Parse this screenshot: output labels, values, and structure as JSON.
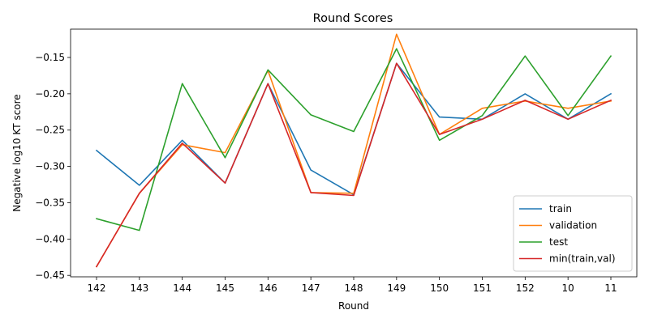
{
  "chart_data": {
    "type": "line",
    "title": "Round Scores",
    "xlabel": "Round",
    "ylabel": "Negative log10 KT score",
    "categories": [
      "142",
      "143",
      "144",
      "145",
      "146",
      "147",
      "148",
      "149",
      "150",
      "151",
      "152",
      "10",
      "11"
    ],
    "ylim": [
      -0.452,
      -0.111
    ],
    "yticks": [
      -0.45,
      -0.4,
      -0.35,
      -0.3,
      -0.25,
      -0.2,
      -0.15
    ],
    "ytick_labels": [
      "−0.45",
      "−0.40",
      "−0.35",
      "−0.30",
      "−0.25",
      "−0.20",
      "−0.15"
    ],
    "grid": false,
    "legend_position": "lower right",
    "series": [
      {
        "name": "train",
        "color": "#1f77b4",
        "values": [
          -0.278,
          -0.326,
          -0.264,
          -0.323,
          -0.186,
          -0.305,
          -0.339,
          -0.158,
          -0.232,
          -0.235,
          -0.2,
          -0.235,
          -0.2
        ]
      },
      {
        "name": "validation",
        "color": "#ff7f0e",
        "values": [
          -0.438,
          -0.337,
          -0.27,
          -0.281,
          -0.168,
          -0.336,
          -0.337,
          -0.118,
          -0.256,
          -0.22,
          -0.21,
          -0.22,
          -0.21
        ]
      },
      {
        "name": "test",
        "color": "#2ca02c",
        "values": [
          -0.372,
          -0.388,
          -0.186,
          -0.288,
          -0.167,
          -0.229,
          -0.252,
          -0.138,
          -0.264,
          -0.23,
          -0.148,
          -0.23,
          -0.148
        ]
      },
      {
        "name": "min(train,val)",
        "color": "#d62728",
        "values": [
          -0.438,
          -0.337,
          -0.268,
          -0.323,
          -0.186,
          -0.336,
          -0.34,
          -0.158,
          -0.256,
          -0.235,
          -0.209,
          -0.235,
          -0.209
        ]
      }
    ]
  }
}
